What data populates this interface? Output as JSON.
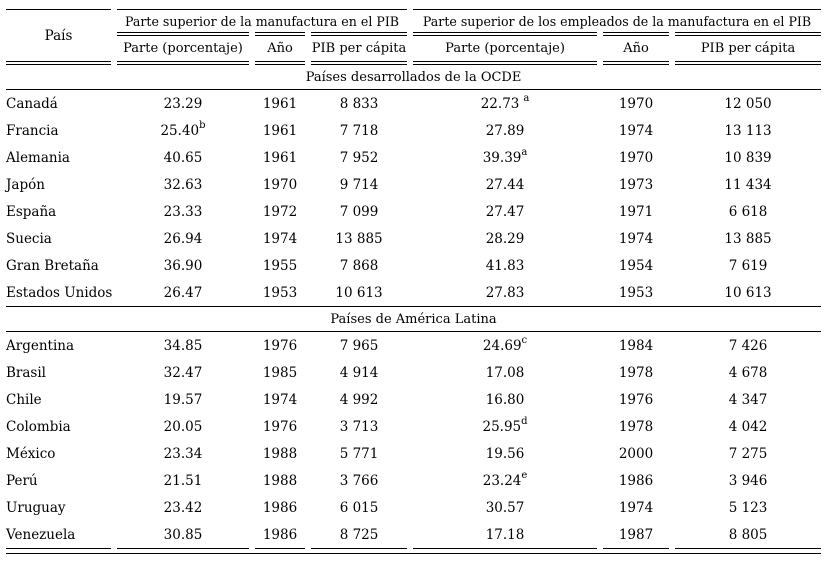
{
  "table": {
    "col_country": "País",
    "group1": "Parte superior de la manufactura en el PIB",
    "group2": "Parte superior de los empleados de la manufactura en el PIB",
    "subheaders": {
      "share": "Parte (porcentaje)",
      "year": "Año",
      "gdp": "PIB per cápita"
    },
    "sections": [
      {
        "title": "Países desarrollados de la OCDE",
        "rows": [
          {
            "country": "Canadá",
            "share1": "23.29",
            "year1": "1961",
            "gdp1": "8 833",
            "share2": "22.73",
            "sup2": "a",
            "sup2_spaced": true,
            "year2": "1970",
            "gdp2": "12 050"
          },
          {
            "country": "Francia",
            "share1": "25.40",
            "sup1": "b",
            "year1": "1961",
            "gdp1": "7 718",
            "share2": "27.89",
            "year2": "1974",
            "gdp2": "13 113"
          },
          {
            "country": "Alemania",
            "share1": "40.65",
            "year1": "1961",
            "gdp1": "7 952",
            "share2": "39.39",
            "sup2": "a",
            "year2": "1970",
            "gdp2": "10 839"
          },
          {
            "country": "Japón",
            "share1": "32.63",
            "year1": "1970",
            "gdp1": "9 714",
            "share2": "27.44",
            "year2": "1973",
            "gdp2": "11 434"
          },
          {
            "country": "España",
            "share1": "23.33",
            "year1": "1972",
            "gdp1": "7 099",
            "share2": "27.47",
            "year2": "1971",
            "gdp2": "6 618"
          },
          {
            "country": "Suecia",
            "share1": "26.94",
            "year1": "1974",
            "gdp1": "13 885",
            "share2": "28.29",
            "year2": "1974",
            "gdp2": "13 885"
          },
          {
            "country": "Gran Bretaña",
            "share1": "36.90",
            "year1": "1955",
            "gdp1": "7 868",
            "share2": "41.83",
            "year2": "1954",
            "gdp2": "7 619"
          },
          {
            "country": "Estados Unidos",
            "share1": "26.47",
            "year1": "1953",
            "gdp1": "10 613",
            "share2": "27.83",
            "year2": "1953",
            "gdp2": "10 613"
          }
        ]
      },
      {
        "title": "Países de América Latina",
        "rows": [
          {
            "country": "Argentina",
            "share1": "34.85",
            "year1": "1976",
            "gdp1": "7 965",
            "share2": "24.69",
            "sup2": "c",
            "year2": "1984",
            "gdp2": "7 426"
          },
          {
            "country": "Brasil",
            "share1": "32.47",
            "year1": "1985",
            "gdp1": "4 914",
            "share2": "17.08",
            "year2": "1978",
            "gdp2": "4 678"
          },
          {
            "country": "Chile",
            "share1": "19.57",
            "year1": "1974",
            "gdp1": "4 992",
            "share2": "16.80",
            "year2": "1976",
            "gdp2": "4 347"
          },
          {
            "country": "Colombia",
            "share1": "20.05",
            "year1": "1976",
            "gdp1": "3 713",
            "share2": "25.95",
            "sup2": "d",
            "year2": "1978",
            "gdp2": "4 042"
          },
          {
            "country": "México",
            "share1": "23.34",
            "year1": "1988",
            "gdp1": "5 771",
            "share2": "19.56",
            "year2": "2000",
            "gdp2": "7 275"
          },
          {
            "country": "Perú",
            "share1": "21.51",
            "year1": "1988",
            "gdp1": "3 766",
            "share2": "23.24",
            "sup2": "e",
            "year2": "1986",
            "gdp2": "3 946"
          },
          {
            "country": "Uruguay",
            "share1": "23.42",
            "year1": "1986",
            "gdp1": "6 015",
            "share2": "30.57",
            "year2": "1974",
            "gdp2": "5 123"
          },
          {
            "country": "Venezuela",
            "share1": "30.85",
            "year1": "1986",
            "gdp1": "8 725",
            "share2": "17.18",
            "year2": "1987",
            "gdp2": "8 805"
          }
        ]
      }
    ]
  }
}
